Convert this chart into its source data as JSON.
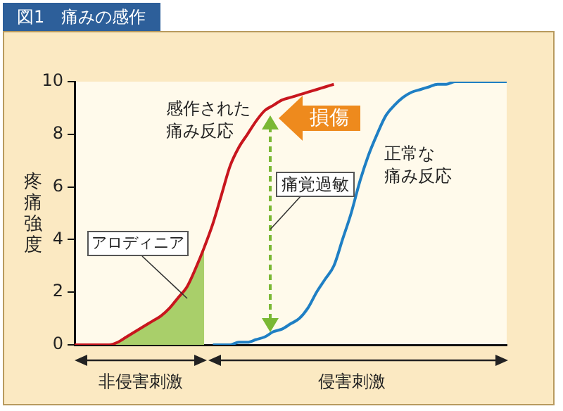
{
  "chart_data": {
    "type": "line",
    "title": "図1　痛みの感作",
    "ylabel": "疼痛強度",
    "categories": [
      null,
      null,
      null,
      null,
      null,
      null,
      null,
      null,
      null,
      null,
      null,
      null,
      null,
      null,
      null,
      null,
      null,
      null,
      null,
      null,
      null,
      null,
      null,
      null,
      null,
      null,
      null,
      null,
      null,
      null,
      null,
      null,
      null,
      null,
      null,
      null,
      null,
      null,
      null,
      null,
      null,
      null,
      null,
      null,
      null,
      null,
      null,
      null,
      null,
      null,
      null
    ],
    "series": [
      {
        "name": "感作された痛み反応",
        "color": "#c8161e",
        "values": [
          0,
          0,
          0,
          0,
          0,
          0.1,
          0.3,
          0.5,
          0.7,
          0.9,
          1.1,
          1.4,
          1.8,
          2.2,
          2.9,
          3.7,
          4.6,
          5.7,
          6.8,
          7.5,
          8.0,
          8.5,
          8.9,
          9.1,
          9.3,
          9.4,
          9.5,
          9.6,
          9.7,
          9.8,
          9.9,
          null,
          null,
          null,
          null,
          null,
          null,
          null,
          null,
          null,
          null,
          null,
          null,
          null,
          null,
          null,
          null,
          null,
          null,
          null,
          null
        ]
      },
      {
        "name": "正常な痛み反応",
        "color": "#1f7fc4",
        "values": [
          null,
          null,
          null,
          null,
          null,
          null,
          null,
          null,
          null,
          null,
          null,
          null,
          null,
          null,
          null,
          null,
          0,
          0,
          0,
          0.1,
          0.1,
          0.2,
          0.3,
          0.5,
          0.6,
          0.8,
          1.0,
          1.4,
          2.0,
          2.5,
          3.0,
          4.0,
          5.0,
          6.2,
          7.2,
          8.0,
          8.7,
          9.1,
          9.4,
          9.6,
          9.7,
          9.8,
          9.9,
          9.9,
          10,
          10,
          10,
          10,
          10,
          10,
          10
        ]
      },
      {
        "type": "area",
        "color": "#a9cf6a",
        "values": [
          0,
          0,
          0,
          0,
          0,
          0.1,
          0.3,
          0.5,
          0.7,
          0.9,
          1.1,
          1.4,
          1.8,
          2.2,
          2.9,
          3.7,
          null,
          null,
          null,
          null,
          null,
          null,
          null,
          null,
          null,
          null,
          null,
          null,
          null,
          null,
          null,
          null,
          null,
          null,
          null,
          null,
          null,
          null,
          null,
          null,
          null,
          null,
          null,
          null,
          null,
          null,
          null,
          null,
          null,
          null,
          null
        ]
      }
    ],
    "ylim": [
      0,
      10
    ],
    "yticks": [
      0,
      2,
      4,
      6,
      8,
      10
    ],
    "grid": false,
    "legend": false,
    "marker": "none",
    "line_style": "solid",
    "tick_labels": "y",
    "annotations": [
      "アロディニア",
      "痛覚過敏",
      "損傷",
      "非侵害刺激",
      "侵害刺激"
    ]
  }
}
